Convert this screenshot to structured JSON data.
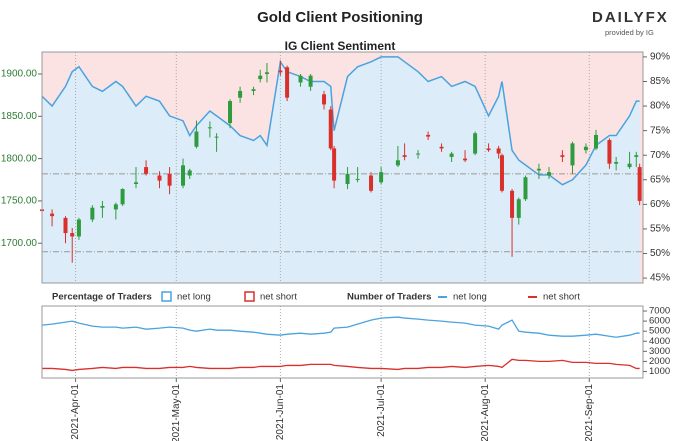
{
  "brand": {
    "logo": "DAILYFX",
    "logo_sub": "provided by IG"
  },
  "chart_data": [
    {
      "type": "candlestick",
      "title": "Gold Client Positioning",
      "subtitle": "IG Client Sentiment",
      "x": [
        "2021-03-22",
        "2021-03-25",
        "2021-03-29",
        "2021-03-31",
        "2021-04-02",
        "2021-04-06",
        "2021-04-09",
        "2021-04-13",
        "2021-04-15",
        "2021-04-19",
        "2021-04-22",
        "2021-04-26",
        "2021-04-29",
        "2021-05-03",
        "2021-05-05",
        "2021-05-07",
        "2021-05-11",
        "2021-05-13",
        "2021-05-17",
        "2021-05-20",
        "2021-05-24",
        "2021-05-26",
        "2021-05-28",
        "2021-06-01",
        "2021-06-03",
        "2021-06-07",
        "2021-06-10",
        "2021-06-14",
        "2021-06-16",
        "2021-06-17",
        "2021-06-21",
        "2021-06-24",
        "2021-06-28",
        "2021-07-01",
        "2021-07-06",
        "2021-07-08",
        "2021-07-12",
        "2021-07-15",
        "2021-07-19",
        "2021-07-22",
        "2021-07-26",
        "2021-07-29",
        "2021-08-02",
        "2021-08-05",
        "2021-08-06",
        "2021-08-09",
        "2021-08-11",
        "2021-08-13",
        "2021-08-17",
        "2021-08-20",
        "2021-08-24",
        "2021-08-27",
        "2021-08-31",
        "2021-09-03",
        "2021-09-07",
        "2021-09-09",
        "2021-09-13",
        "2021-09-15",
        "2021-09-16"
      ],
      "open": [
        1740,
        1735,
        1730,
        1712,
        1708,
        1728,
        1742,
        1740,
        1746,
        1770,
        1790,
        1780,
        1782,
        1768,
        1780,
        1814,
        1836,
        1826,
        1842,
        1872,
        1880,
        1894,
        1900,
        1904,
        1908,
        1890,
        1885,
        1876,
        1858,
        1812,
        1770,
        1776,
        1780,
        1772,
        1792,
        1804,
        1806,
        1828,
        1814,
        1802,
        1800,
        1806,
        1812,
        1812,
        1804,
        1762,
        1730,
        1752,
        1786,
        1780,
        1804,
        1792,
        1810,
        1812,
        1822,
        1794,
        1790,
        1802,
        1790
      ],
      "high": [
        1745,
        1740,
        1732,
        1718,
        1730,
        1745,
        1750,
        1748,
        1765,
        1790,
        1798,
        1785,
        1790,
        1800,
        1788,
        1845,
        1844,
        1830,
        1870,
        1885,
        1885,
        1905,
        1913,
        1916,
        1910,
        1900,
        1900,
        1880,
        1862,
        1815,
        1790,
        1790,
        1784,
        1790,
        1815,
        1818,
        1810,
        1832,
        1818,
        1808,
        1810,
        1832,
        1818,
        1815,
        1806,
        1764,
        1754,
        1780,
        1794,
        1790,
        1810,
        1820,
        1818,
        1834,
        1824,
        1802,
        1808,
        1808,
        1794
      ],
      "low": [
        1725,
        1720,
        1700,
        1677,
        1704,
        1725,
        1730,
        1728,
        1744,
        1765,
        1780,
        1765,
        1758,
        1765,
        1776,
        1812,
        1825,
        1808,
        1836,
        1866,
        1875,
        1890,
        1890,
        1898,
        1868,
        1885,
        1880,
        1858,
        1810,
        1765,
        1764,
        1772,
        1760,
        1770,
        1790,
        1798,
        1800,
        1822,
        1808,
        1796,
        1796,
        1804,
        1808,
        1800,
        1760,
        1684,
        1722,
        1750,
        1776,
        1776,
        1796,
        1782,
        1806,
        1810,
        1788,
        1786,
        1788,
        1790,
        1745
      ],
      "close": [
        1738,
        1732,
        1712,
        1708,
        1728,
        1742,
        1744,
        1746,
        1764,
        1772,
        1782,
        1774,
        1768,
        1792,
        1786,
        1832,
        1837,
        1826,
        1868,
        1880,
        1882,
        1898,
        1902,
        1902,
        1872,
        1898,
        1898,
        1864,
        1812,
        1774,
        1782,
        1776,
        1762,
        1784,
        1798,
        1802,
        1806,
        1826,
        1812,
        1806,
        1798,
        1830,
        1810,
        1806,
        1762,
        1730,
        1752,
        1778,
        1788,
        1784,
        1802,
        1818,
        1814,
        1828,
        1794,
        1796,
        1794,
        1804,
        1750
      ],
      "up_color": "#2e9b3e",
      "down_color": "#d9302c",
      "xlim": [
        "2021-03-22",
        "2021-09-17"
      ],
      "ylim": [
        1653,
        1926
      ],
      "yticks": [
        {
          "value": 1700,
          "label": "1700.00"
        },
        {
          "value": 1750,
          "label": "1750.00"
        },
        {
          "value": 1800,
          "label": "1800.00"
        },
        {
          "value": 1850,
          "label": "1850.00"
        },
        {
          "value": 1900,
          "label": "1900.00"
        }
      ],
      "y2lim": [
        44,
        91
      ],
      "y2ticks": [
        {
          "value": 45,
          "label": "45%"
        },
        {
          "value": 50,
          "label": "50%"
        },
        {
          "value": 55,
          "label": "55%"
        },
        {
          "value": 60,
          "label": "60%"
        },
        {
          "value": 65,
          "label": "65%"
        },
        {
          "value": 70,
          "label": "70%"
        },
        {
          "value": 75,
          "label": "75%"
        },
        {
          "value": 80,
          "label": "80%"
        },
        {
          "value": 85,
          "label": "85%"
        },
        {
          "value": 90,
          "label": "90%"
        }
      ],
      "ref_lines": [
        1782,
        1690
      ],
      "series": [
        {
          "name": "net long",
          "axis": "y2",
          "color": "#4aa3df",
          "fill": "#dcedf9",
          "values": [
            82,
            80,
            84,
            87,
            88,
            84,
            83,
            85,
            84,
            80,
            82,
            81,
            78,
            77,
            74,
            76,
            79,
            78,
            76,
            74,
            73,
            74,
            72,
            89,
            87,
            86,
            85,
            85,
            84,
            75,
            86,
            88,
            89,
            90,
            90,
            89,
            87,
            85,
            86,
            84,
            85,
            84,
            78,
            82,
            85,
            71,
            69,
            68,
            66,
            66,
            64,
            65,
            68,
            72,
            74,
            74,
            78,
            81,
            81
          ]
        }
      ],
      "legend_title": "Percentage of Traders",
      "legend": [
        {
          "name": "net long",
          "color": "#4aa3df"
        },
        {
          "name": "net short",
          "color": "#d9302c"
        }
      ],
      "short_fill": "#fbe3e3"
    },
    {
      "type": "line",
      "legend_title": "Number of Traders",
      "x": [
        "2021-03-22",
        "2021-03-25",
        "2021-03-29",
        "2021-03-31",
        "2021-04-02",
        "2021-04-06",
        "2021-04-09",
        "2021-04-13",
        "2021-04-15",
        "2021-04-19",
        "2021-04-22",
        "2021-04-26",
        "2021-04-29",
        "2021-05-03",
        "2021-05-05",
        "2021-05-07",
        "2021-05-11",
        "2021-05-13",
        "2021-05-17",
        "2021-05-20",
        "2021-05-24",
        "2021-05-26",
        "2021-05-28",
        "2021-06-01",
        "2021-06-03",
        "2021-06-07",
        "2021-06-10",
        "2021-06-14",
        "2021-06-16",
        "2021-06-17",
        "2021-06-21",
        "2021-06-24",
        "2021-06-28",
        "2021-07-01",
        "2021-07-06",
        "2021-07-08",
        "2021-07-12",
        "2021-07-15",
        "2021-07-19",
        "2021-07-22",
        "2021-07-26",
        "2021-07-29",
        "2021-08-02",
        "2021-08-05",
        "2021-08-06",
        "2021-08-09",
        "2021-08-11",
        "2021-08-13",
        "2021-08-17",
        "2021-08-20",
        "2021-08-24",
        "2021-08-27",
        "2021-08-31",
        "2021-09-03",
        "2021-09-07",
        "2021-09-09",
        "2021-09-13",
        "2021-09-15",
        "2021-09-16"
      ],
      "xlim": [
        "2021-03-22",
        "2021-09-17"
      ],
      "xticks": [
        {
          "value": "2021-04-01",
          "label": "2021-Apr-01"
        },
        {
          "value": "2021-05-01",
          "label": "2021-May-01"
        },
        {
          "value": "2021-06-01",
          "label": "2021-Jun-01"
        },
        {
          "value": "2021-07-01",
          "label": "2021-Jul-01"
        },
        {
          "value": "2021-08-01",
          "label": "2021-Aug-01"
        },
        {
          "value": "2021-09-01",
          "label": "2021-Sep-01"
        }
      ],
      "ylim": [
        350,
        7500
      ],
      "yticks": [
        1000,
        2000,
        3000,
        4000,
        5000,
        6000,
        7000
      ],
      "series": [
        {
          "name": "net long",
          "color": "#4aa3df",
          "values": [
            5600,
            5700,
            5900,
            6000,
            5800,
            5500,
            5400,
            5400,
            5300,
            5400,
            5200,
            5300,
            5400,
            5300,
            5100,
            5000,
            5200,
            5100,
            5100,
            5000,
            4900,
            4800,
            4700,
            4600,
            4700,
            4800,
            4700,
            4800,
            4900,
            5300,
            5400,
            5700,
            6100,
            6300,
            6400,
            6300,
            6200,
            6100,
            6000,
            5900,
            5800,
            5600,
            5500,
            5200,
            5600,
            6100,
            5000,
            4900,
            4800,
            4600,
            4500,
            4500,
            4600,
            4700,
            4500,
            4400,
            4600,
            4800,
            4800
          ]
        },
        {
          "name": "net short",
          "color": "#d9302c",
          "values": [
            1300,
            1300,
            1200,
            1100,
            1200,
            1300,
            1400,
            1300,
            1400,
            1400,
            1300,
            1300,
            1400,
            1400,
            1500,
            1400,
            1300,
            1300,
            1300,
            1400,
            1400,
            1500,
            1500,
            1500,
            1600,
            1600,
            1700,
            1700,
            1700,
            1600,
            1500,
            1400,
            1300,
            1300,
            1200,
            1300,
            1300,
            1400,
            1400,
            1500,
            1400,
            1500,
            1600,
            1500,
            1400,
            2200,
            2100,
            2100,
            2000,
            2000,
            2100,
            1900,
            1900,
            1800,
            1800,
            1700,
            1600,
            1300,
            1300
          ]
        }
      ]
    }
  ]
}
